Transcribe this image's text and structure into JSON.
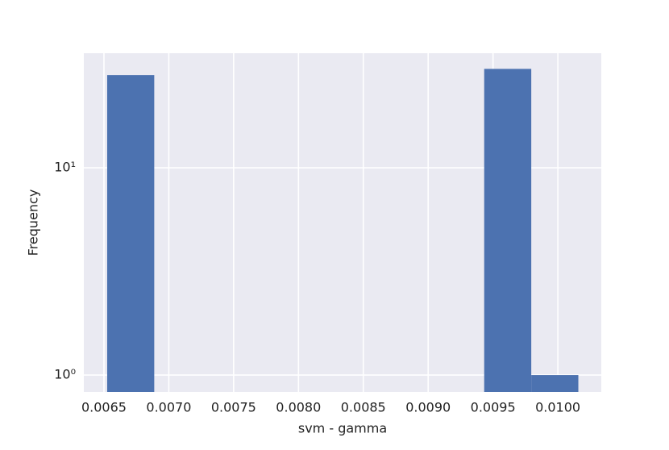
{
  "chart_data": {
    "type": "histogram",
    "xlabel": "svm - gamma",
    "ylabel": "Frequency",
    "bins": [
      0.006525,
      0.006888,
      0.007252,
      0.007615,
      0.007978,
      0.008342,
      0.008705,
      0.009068,
      0.009432,
      0.009795,
      0.010158
    ],
    "values": [
      28,
      0,
      0,
      0,
      0,
      0,
      0,
      0,
      30,
      1
    ],
    "color": "#4c72b0",
    "xlim": [
      0.006345,
      0.010335
    ],
    "xticks": [
      0.0065,
      {
        "value": 0.007,
        "label": "0.0070"
      },
      0.0075,
      {
        "value": 0.008,
        "label": "0.0080"
      },
      0.0085,
      {
        "value": 0.009,
        "label": "0.0090"
      },
      0.0095,
      {
        "value": 0.01,
        "label": "0.0100"
      }
    ],
    "ylim": [
      0.829,
      35.7
    ],
    "ylog": true,
    "yticks": [
      {
        "value": 1,
        "label": "10⁰"
      },
      {
        "value": 10,
        "label": "10¹"
      }
    ],
    "grid": true
  }
}
